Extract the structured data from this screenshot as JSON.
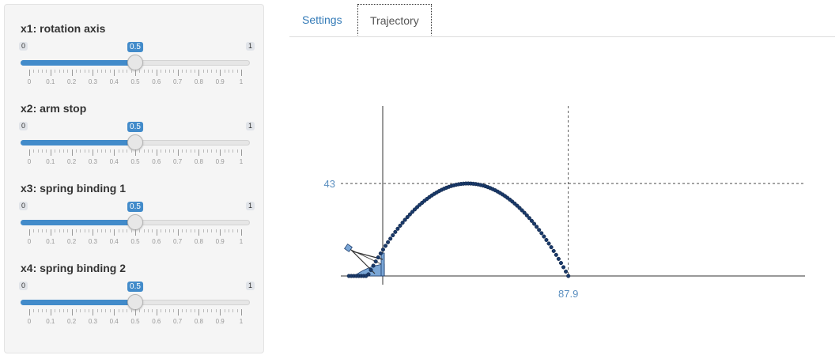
{
  "sidebar": {
    "sliders": [
      {
        "label": "x1: rotation axis",
        "min": "0",
        "max": "1",
        "value": 0.5,
        "value_label": "0.5"
      },
      {
        "label": "x2: arm stop",
        "min": "0",
        "max": "1",
        "value": 0.5,
        "value_label": "0.5"
      },
      {
        "label": "x3: spring binding 1",
        "min": "0",
        "max": "1",
        "value": 0.5,
        "value_label": "0.5"
      },
      {
        "label": "x4: spring binding 2",
        "min": "0",
        "max": "1",
        "value": 0.5,
        "value_label": "0.5"
      }
    ],
    "tick_labels": [
      "0",
      "0.1",
      "0.2",
      "0.3",
      "0.4",
      "0.5",
      "0.6",
      "0.7",
      "0.8",
      "0.9",
      "1"
    ]
  },
  "tabs": [
    {
      "label": "Settings",
      "active": false
    },
    {
      "label": "Trajectory",
      "active": true
    }
  ],
  "chart_data": {
    "type": "line",
    "series": [
      {
        "x_range": [
          0,
          87.9
        ],
        "peak_y": 43,
        "start_y": 12.4,
        "end_y": 0
      }
    ],
    "annotations": [
      {
        "axis": "y",
        "value": 43,
        "label": "43"
      },
      {
        "axis": "x",
        "value": 87.9,
        "label": "87.9"
      }
    ],
    "xlim": [
      -20,
      200
    ],
    "ylim": [
      -5,
      80
    ],
    "grid": false,
    "colors": {
      "trajectory": "#1a3a6a",
      "annotation_text": "#5b8fc0",
      "catapult_fill": "#7aa6d6"
    }
  }
}
